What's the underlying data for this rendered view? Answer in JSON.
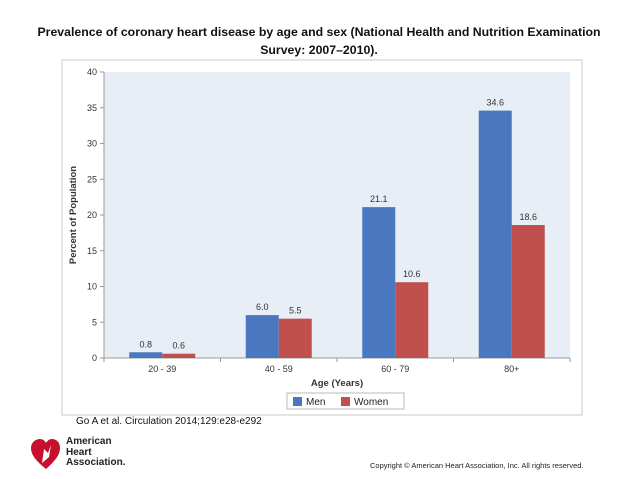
{
  "header": {
    "title_line1": "Prevalence of coronary heart disease by age and sex (National Health and Nutrition Examination",
    "title_line2": "Survey: 2007–2010)."
  },
  "chart_data": {
    "type": "bar",
    "title": "Prevalence of coronary heart disease by age and sex (National Health and Nutrition Examination Survey: 2007–2010).",
    "xlabel": "Age (Years)",
    "ylabel": "Percent of Population",
    "categories": [
      "20 - 39",
      "40 - 59",
      "60 - 79",
      "80+"
    ],
    "series": [
      {
        "name": "Men",
        "color": "#4a78c0",
        "values": [
          0.8,
          6.0,
          21.1,
          34.6
        ],
        "labels": [
          "0.8",
          "6.0",
          "21.1",
          "34.6"
        ]
      },
      {
        "name": "Women",
        "color": "#c0504d",
        "values": [
          0.6,
          5.5,
          10.6,
          18.6
        ],
        "labels": [
          "0.6",
          "5.5",
          "10.6",
          "18.6"
        ]
      }
    ],
    "ylim": [
      0,
      40
    ],
    "yticks": [
      0,
      5,
      10,
      15,
      20,
      25,
      30,
      35,
      40
    ],
    "grid": false,
    "legend": "bottom-center",
    "plot_background": "#e8eef6"
  },
  "footer": {
    "citation": "Go A et al. Circulation 2014;129:e28-e292",
    "logo_line1": "American",
    "logo_line2": "Heart",
    "logo_line3": "Association.",
    "copyright": "Copyright © American Heart Association, Inc. All rights reserved."
  }
}
